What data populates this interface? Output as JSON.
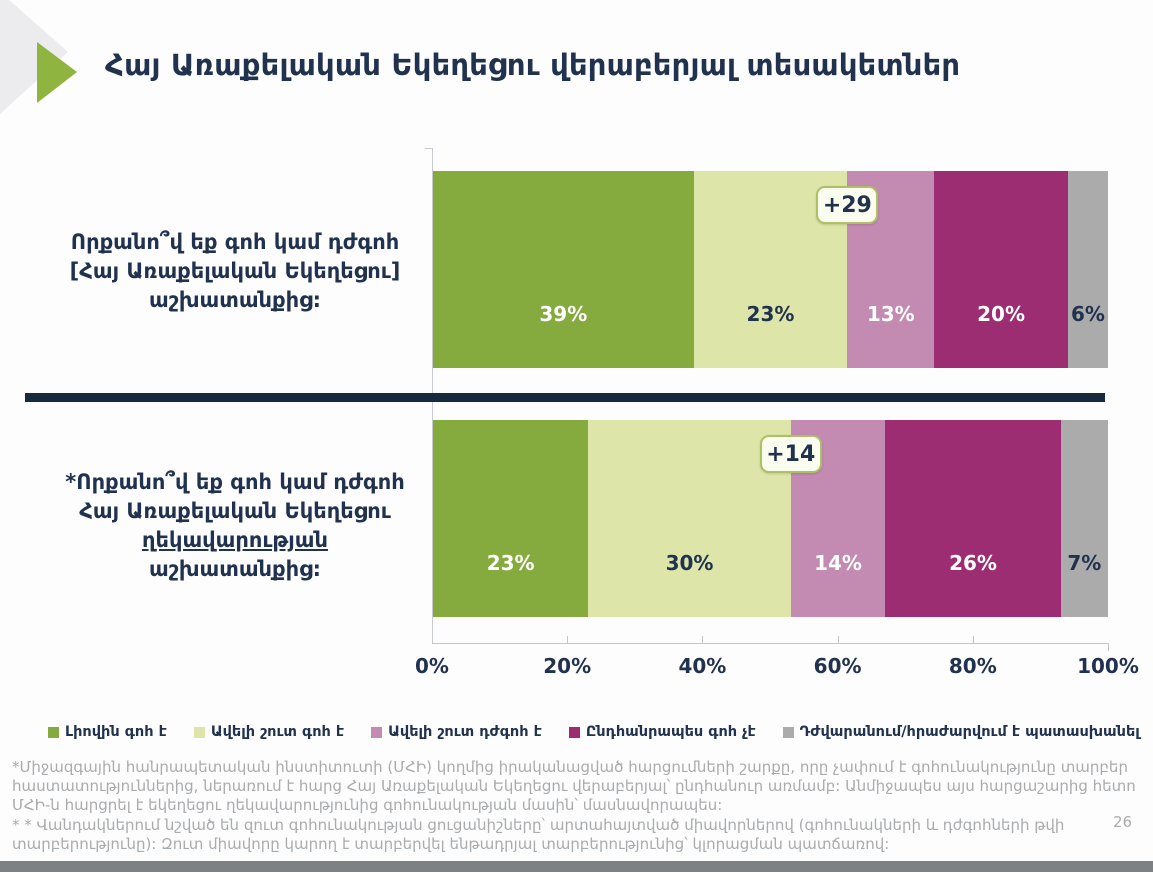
{
  "page_number": "26",
  "footnotes": {
    "first": "*Միջազգային հանրապետական ինստիտուտի (ՄՀԻ) կողմից իրականացված հարցումների շարքը, որը չափում է գոհունակությունը տարբեր հաստատություններից, ներառում է հարց Հայ Առաքելական Եկեղեցու վերաբերյալ՝ ընդհանուր առմամբ: Անմիջապես այս հարցաշարից հետո ՄՀԻ-ն հարցրել է եկեղեցու ղեկավարությունից գոհունակության մասին՝ մասնավորապես:",
    "second": " * * Վանդակներում նշված են զուտ գոհունակության ցուցանիշները՝ արտահայտված միավորներով (գոհունակների և դժգոհների թվի տարբերությունը): Զուտ միավորը կարող է տարբերվել ենթադրյալ տարբերությունից՝ կլորացման պատճառով:"
  },
  "chart_data": {
    "type": "bar",
    "stacked": true,
    "orientation": "horizontal",
    "title": "Հայ Առաքելական Եկեղեցու վերաբերյալ տեսակետներ",
    "xlabel": "",
    "ylabel": "",
    "x_axis": {
      "range": [
        0,
        100
      ],
      "ticks": [
        "0%",
        "20%",
        "40%",
        "60%",
        "80%",
        "100%"
      ]
    },
    "legend_position": "bottom",
    "legend": [
      "Լիովին գոհ է",
      "Ավելի շուտ գոհ է",
      "Ավելի շուտ դժգոհ է",
      "Ընդհանրապես գոհ չէ",
      "Դժվարանում/հրաժարվում է պատասխանել"
    ],
    "colors": [
      "#85aa3d",
      "#dde6a8",
      "#c38ab2",
      "#9d2d73",
      "#acabab"
    ],
    "value_text_colors": [
      "#ffffff",
      "#21324f",
      "#ffffff",
      "#ffffff",
      "#21324f"
    ],
    "accent_navy": "#16293f",
    "rows": [
      {
        "label_lines": [
          "Որքանո՞վ եք գոհ կամ դժգոհ",
          "[Հայ Առաքելական Եկեղեցու]",
          "աշխատանքից:"
        ],
        "underline_line": null,
        "values": [
          39,
          23,
          13,
          20,
          6
        ],
        "value_labels": [
          "39%",
          "23%",
          "13%",
          "20%",
          "6%"
        ],
        "net_badge": "+29"
      },
      {
        "label_lines": [
          "*Որքանո՞վ եք գոհ կամ դժգոհ",
          "Հայ Առաքելական Եկեղեցու",
          "ղեկավարության",
          "աշխատանքից:"
        ],
        "underline_line": 2,
        "values": [
          23,
          30,
          14,
          26,
          7
        ],
        "value_labels": [
          "23%",
          "30%",
          "14%",
          "26%",
          "7%"
        ],
        "net_badge": "+14"
      }
    ]
  }
}
